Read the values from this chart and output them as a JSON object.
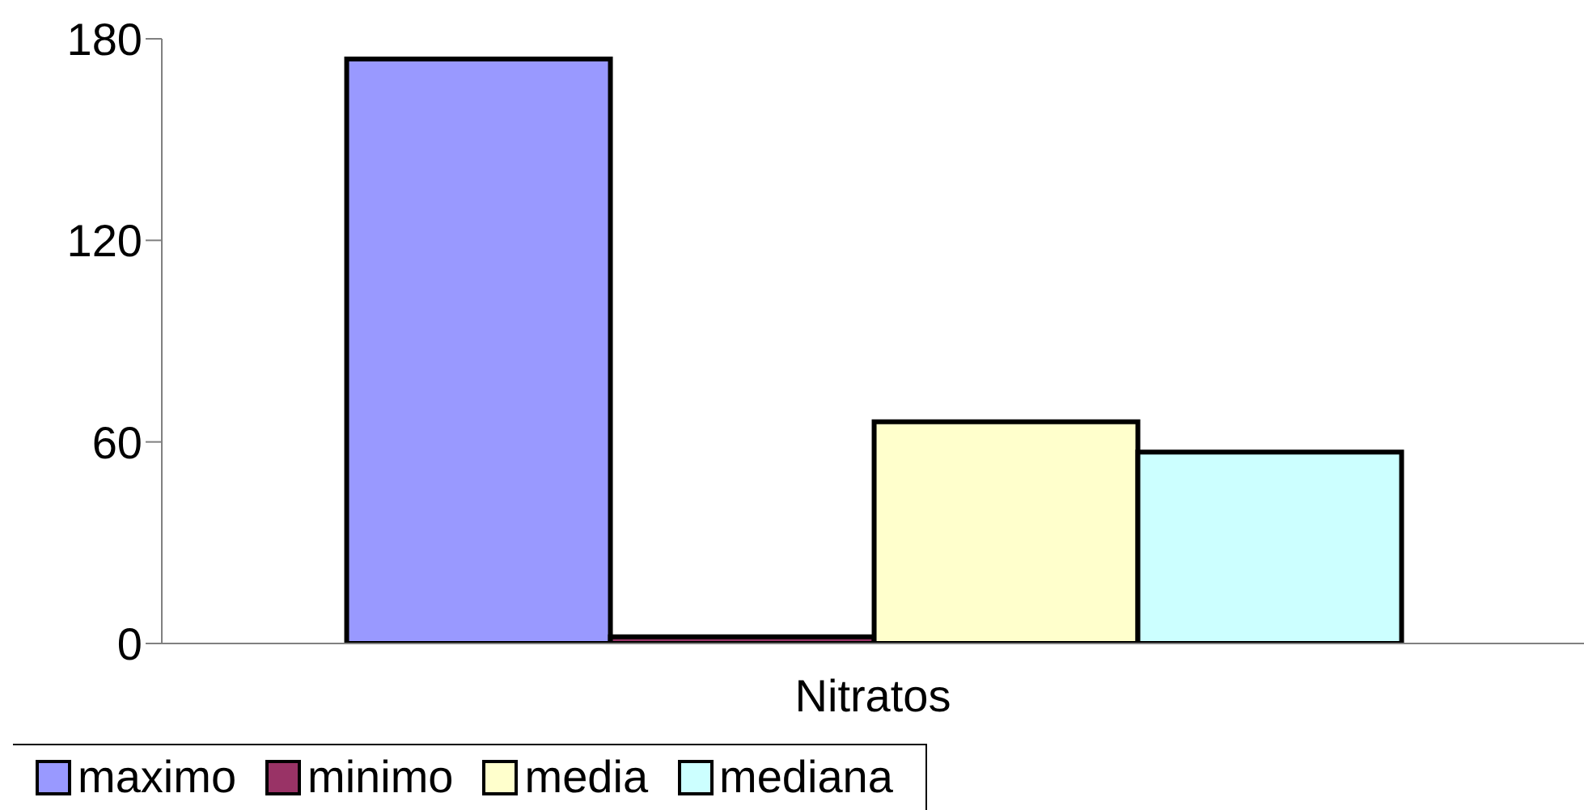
{
  "chart_data": {
    "type": "bar",
    "categories": [
      "Nitratos"
    ],
    "series": [
      {
        "name": "maximo",
        "color": "#9999ff",
        "values": [
          174
        ]
      },
      {
        "name": "minimo",
        "color": "#993366",
        "values": [
          2
        ]
      },
      {
        "name": "media",
        "color": "#ffffcc",
        "values": [
          66
        ]
      },
      {
        "name": "mediana",
        "color": "#ccffff",
        "values": [
          57
        ]
      }
    ],
    "ylim": [
      0,
      180
    ],
    "yticks": [
      0,
      60,
      120,
      180
    ],
    "grid": false,
    "legend": "bottom left"
  }
}
